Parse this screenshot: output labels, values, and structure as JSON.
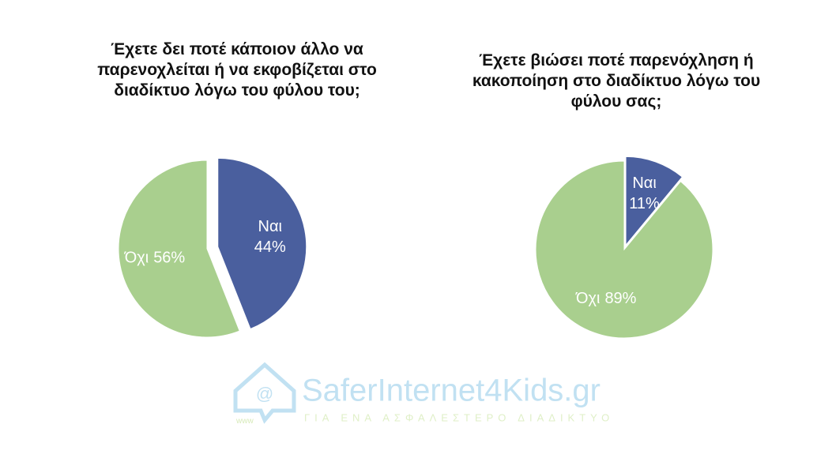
{
  "chart_data": [
    {
      "type": "pie",
      "title": "Έχετε δει ποτέ κάποιον άλλο να παρενοχλείται ή να εκφοβίζεται στο διαδίκτυο λόγω του φύλου του;",
      "categories": [
        "Ναι",
        "Όχι"
      ],
      "values": [
        44,
        56
      ],
      "value_labels": [
        "44%",
        "56%"
      ],
      "colors": [
        "#4a5f9e",
        "#a9cf8e"
      ]
    },
    {
      "type": "pie",
      "title": "Έχετε βιώσει ποτέ παρενόχληση ή κακοποίηση στο διαδίκτυο λόγω του φύλου σας;",
      "categories": [
        "Ναι",
        "Όχι"
      ],
      "values": [
        11,
        89
      ],
      "value_labels": [
        "11%",
        "89%"
      ],
      "colors": [
        "#4a5f9e",
        "#a9cf8e"
      ]
    }
  ],
  "logo": {
    "name": "SaferInternet4Kids.gr",
    "tagline": "ΓΙΑ ΕΝΑ ΑΣΦΑΛΕΣΤΕΡΟ ΔΙΑΔΙΚΤΥΟ",
    "www": "www"
  }
}
